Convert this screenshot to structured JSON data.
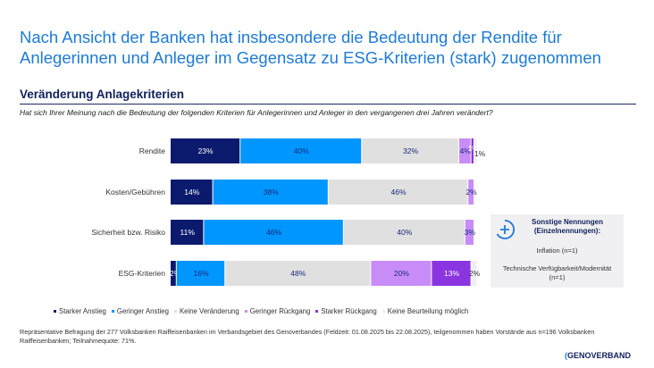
{
  "title": "Nach Ansicht der Banken hat insbesondere die Bedeutung der Rendite für Anlegerinnen und Anleger im Gegensatz zu ESG-Kriterien (stark) zugenommen",
  "subtitle": "Veränderung Anlagekriterien",
  "question": "Hat sich Ihrer Meinung nach die Bedeutung der folgenden Kriterien für Anlegerinnen und Anleger in den vergangenen drei Jahren verändert?",
  "chart_data": {
    "type": "bar",
    "orientation": "horizontal-stacked",
    "categories": [
      "Rendite",
      "Kosten/Gebühren",
      "Sicherheit bzw. Risiko",
      "ESG-Kriterien"
    ],
    "series": [
      {
        "name": "Starker Anstieg",
        "color": "#0c1a6e",
        "values": [
          23,
          14,
          11,
          2
        ]
      },
      {
        "name": "Geringer Anstieg",
        "color": "#0096ff",
        "values": [
          40,
          38,
          46,
          16
        ]
      },
      {
        "name": "Keine Veränderung",
        "color": "#e0e0e0",
        "values": [
          32,
          46,
          40,
          48
        ]
      },
      {
        "name": "Geringer Rückgang",
        "color": "#c78cf7",
        "values": [
          4,
          2,
          3,
          20
        ]
      },
      {
        "name": "Starker Rückgang",
        "color": "#8a35e0",
        "values": [
          1,
          0,
          0,
          13
        ]
      },
      {
        "name": "Keine Beurteilung möglich",
        "color": "#efeff3",
        "values": [
          1,
          0,
          0,
          2
        ]
      }
    ],
    "unit": "%",
    "legend_position": "bottom"
  },
  "note": {
    "heading": "Sonstige Nennungen (Einzelnennungen):",
    "items": [
      "Inflation (n=1)",
      "Technische Verfügbarkeit/Modernität (n=1)"
    ]
  },
  "footnote": "Repräsentative Befragung der 277 Volksbanken Raiffeisenbanken im Verbandsgebiet des Genoverbandes (Feldzeit: 01.08.2025 bis 22.08.2025), teilgenommen haben Vorstände aus n=196 Volksbanken Raiffeisenbanken; Teilnahmequote: 71%.",
  "logo": "GENOVERBAND"
}
